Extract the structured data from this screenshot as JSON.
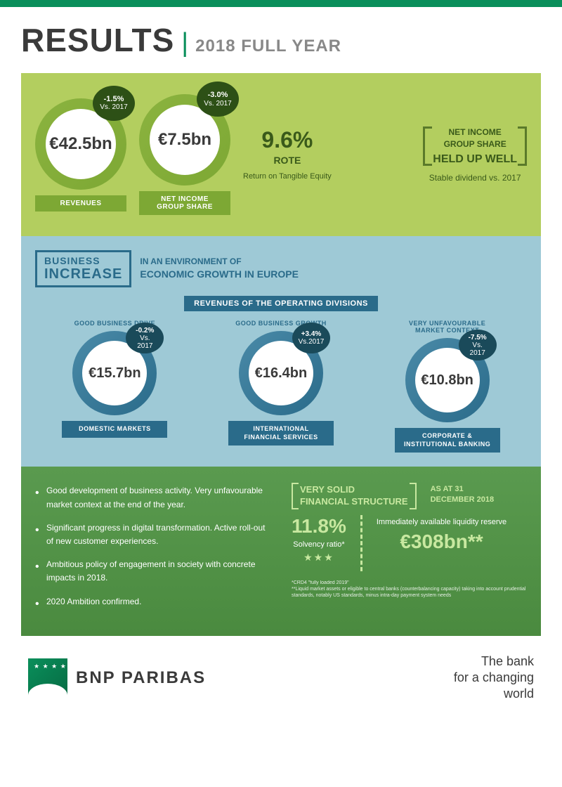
{
  "header": {
    "title": "RESULTS",
    "year": "2018 FULL YEAR"
  },
  "section1": {
    "revenues": {
      "value": "€42.5bn",
      "delta": "-1.5%",
      "vs": "Vs. 2017",
      "label": "REVENUES"
    },
    "netIncome": {
      "value": "€7.5bn",
      "delta": "-3.0%",
      "vs": "Vs. 2017",
      "label": "NET INCOME GROUP SHARE"
    },
    "rote": {
      "value": "9.6%",
      "label": "ROTE",
      "sub": "Return on Tangible Equity"
    },
    "heldWell": {
      "line1": "NET INCOME",
      "line2": "GROUP SHARE",
      "main": "HELD UP WELL",
      "sub": "Stable dividend vs. 2017"
    }
  },
  "section2": {
    "bizLine1": "BUSINESS",
    "bizLine2": "INCREASE",
    "envLine1": "IN AN ENVIRONMENT OF",
    "envLine2": "ECONOMIC GROWTH IN EUROPE",
    "revTitle": "REVENUES OF THE OPERATING DIVISIONS",
    "divisions": [
      {
        "top": "GOOD BUSINESS DRIVE",
        "value": "€15.7bn",
        "delta": "-0.2%",
        "vs": "Vs. 2017",
        "label": "DOMESTIC MARKETS"
      },
      {
        "top": "GOOD BUSINESS GROWTH",
        "value": "€16.4bn",
        "delta": "+3.4%",
        "vs": "Vs.2017",
        "label": "INTERNATIONAL FINANCIAL SERVICES"
      },
      {
        "top": "VERY UNFAVOURABLE MARKET CONTEXT",
        "value": "€10.8bn",
        "delta": "-7.5%",
        "vs": "Vs. 2017",
        "label": "CORPORATE & INSTITUTIONAL BANKING"
      }
    ]
  },
  "section3": {
    "bullets": [
      "Good development of business activity. Very unfavourable market context at the end of the year.",
      "Significant progress in digital transformation. Active roll-out of new customer experiences.",
      "Ambitious policy of engagement in society with concrete impacts in 2018.",
      "2020 Ambition confirmed."
    ],
    "fsTitle1": "VERY SOLID",
    "fsTitle2": "FINANCIAL STRUCTURE",
    "asAt1": "AS AT 31",
    "asAt2": "DECEMBER 2018",
    "solvency": {
      "value": "11.8%",
      "label": "Solvency ratio*",
      "stars": "★★★"
    },
    "liquidity": {
      "label": "Immediately available liquidity reserve",
      "value": "€308bn**"
    },
    "foot1": "*CRD4 \"fully loaded 2019\"",
    "foot2": "**Liquid market assets or eligible to central banks (counterbalancing capacity) taking into account prudential standards, notably US standards, minus intra-day payment system needs"
  },
  "footer": {
    "brand": "BNP PARIBAS",
    "tag1": "The bank",
    "tag2": "for a changing",
    "tag3": "world"
  }
}
